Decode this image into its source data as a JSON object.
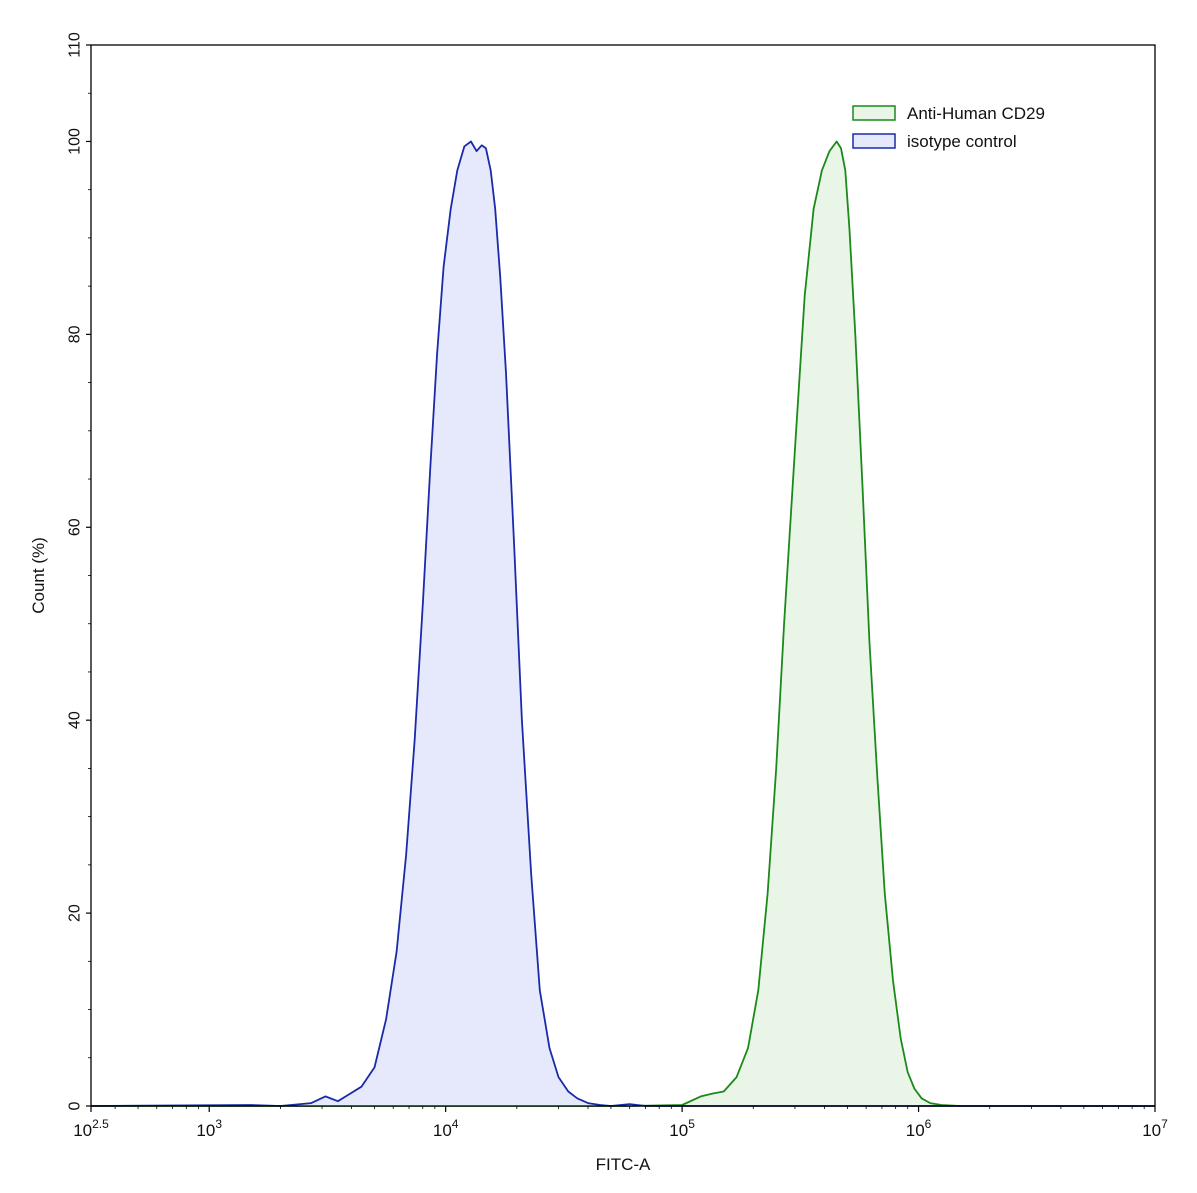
{
  "chart_data": {
    "type": "area",
    "title": "",
    "xlabel": "FITC-A",
    "ylabel": "Count  (%)",
    "x_scale": "log10",
    "xlim": [
      316.23,
      10000000
    ],
    "ylim": [
      0,
      110
    ],
    "grid": false,
    "legend_position": "top-right",
    "x_ticks": [
      {
        "value": 316.23,
        "base": "10",
        "exp": "2.5"
      },
      {
        "value": 1000,
        "base": "10",
        "exp": "3"
      },
      {
        "value": 10000,
        "base": "10",
        "exp": "4"
      },
      {
        "value": 100000,
        "base": "10",
        "exp": "5"
      },
      {
        "value": 1000000,
        "base": "10",
        "exp": "6"
      },
      {
        "value": 10000000,
        "base": "10",
        "exp": "7"
      }
    ],
    "y_ticks": [
      {
        "value": 0,
        "label": "0"
      },
      {
        "value": 20,
        "label": "20"
      },
      {
        "value": 40,
        "label": "40"
      },
      {
        "value": 60,
        "label": "60"
      },
      {
        "value": 80,
        "label": "80"
      },
      {
        "value": 100,
        "label": "100"
      },
      {
        "value": 110,
        "label": "110"
      }
    ],
    "series": [
      {
        "name": "Anti-Human CD29",
        "color": "#1a8a1a",
        "fill": "#e9f5e6",
        "x": [
          316.23,
          20000,
          60000,
          100000,
          120000,
          135000,
          150000,
          170000,
          190000,
          210000,
          230000,
          250000,
          270000,
          300000,
          330000,
          360000,
          390000,
          420000,
          450000,
          470000,
          490000,
          510000,
          540000,
          580000,
          620000,
          670000,
          720000,
          780000,
          840000,
          900000,
          960000,
          1030000,
          1120000,
          1250000,
          1500000,
          2000000,
          10000000
        ],
        "y": [
          0,
          0,
          0,
          0.1,
          1.0,
          1.3,
          1.5,
          3.0,
          6.0,
          12.0,
          22.0,
          35.0,
          50.0,
          68.0,
          84.0,
          93.0,
          97.0,
          99.0,
          100,
          99.3,
          97.0,
          91.0,
          80.0,
          64.0,
          48.0,
          34.0,
          22.0,
          13.0,
          7.0,
          3.5,
          1.8,
          0.8,
          0.3,
          0.1,
          0,
          0,
          0
        ]
      },
      {
        "name": "isotype control",
        "color": "#1a2aa8",
        "fill": "#e6e8fb",
        "x": [
          316.23,
          1500,
          2000,
          2700,
          3100,
          3500,
          3900,
          4400,
          5000,
          5600,
          6200,
          6800,
          7400,
          8000,
          8600,
          9200,
          9800,
          10500,
          11200,
          12000,
          12800,
          13500,
          14200,
          14800,
          15500,
          16200,
          17000,
          18000,
          19500,
          21000,
          23000,
          25000,
          27500,
          30000,
          33000,
          36000,
          40000,
          45000,
          50000,
          60000,
          70000,
          100000,
          10000000
        ],
        "y": [
          0,
          0.1,
          0,
          0.3,
          1.0,
          0.5,
          1.2,
          2.0,
          4.0,
          9.0,
          16.0,
          26.0,
          38.0,
          52.0,
          66.0,
          78.0,
          87.0,
          93.0,
          97.0,
          99.5,
          100,
          99.0,
          99.6,
          99.3,
          97.0,
          93.0,
          86.0,
          76.0,
          58.0,
          40.0,
          24.0,
          12.0,
          6.0,
          3.0,
          1.5,
          0.8,
          0.3,
          0.1,
          0,
          0.2,
          0,
          0,
          0
        ]
      }
    ]
  }
}
